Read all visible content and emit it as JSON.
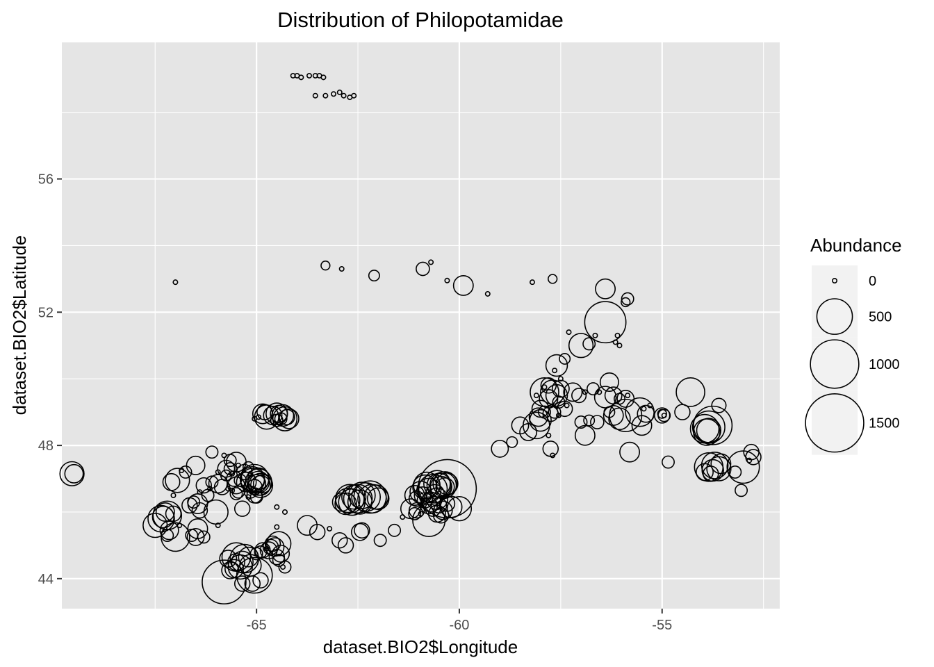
{
  "chart_data": {
    "type": "scatter",
    "title": "Distribution of Philopotamidae",
    "xlabel": "dataset.BIO2$Longitude",
    "ylabel": "dataset.BIO2$Latitude",
    "xlim": [
      -69.8,
      -52.1
    ],
    "ylim": [
      43.1,
      60.1
    ],
    "x_ticks": [
      -65,
      -60,
      -55
    ],
    "y_ticks": [
      44,
      48,
      52,
      56
    ],
    "x_tick_labels": [
      "-65",
      "-60",
      "-55"
    ],
    "y_tick_labels": [
      "44",
      "48",
      "52",
      "56"
    ],
    "grid": true,
    "panel_color": "#e5e5e5",
    "grid_color": "#ffffff",
    "marker_color": "#000000",
    "legend": {
      "title": "Abundance",
      "position": "right",
      "entries": [
        {
          "label": "0",
          "value": 0
        },
        {
          "label": "500",
          "value": 500
        },
        {
          "label": "1000",
          "value": 1000
        },
        {
          "label": "1500",
          "value": 1500
        }
      ]
    },
    "points": [
      [
        -64.1,
        59.1,
        0
      ],
      [
        -64.0,
        59.1,
        0
      ],
      [
        -63.9,
        59.05,
        0
      ],
      [
        -63.7,
        59.1,
        0
      ],
      [
        -63.55,
        59.1,
        0
      ],
      [
        -63.45,
        59.1,
        0
      ],
      [
        -63.35,
        59.05,
        0
      ],
      [
        -63.55,
        58.5,
        0
      ],
      [
        -63.3,
        58.5,
        0
      ],
      [
        -63.1,
        58.55,
        0
      ],
      [
        -62.95,
        58.6,
        0
      ],
      [
        -62.85,
        58.5,
        0
      ],
      [
        -62.7,
        58.45,
        0
      ],
      [
        -62.6,
        58.5,
        0
      ],
      [
        -67.0,
        52.9,
        0
      ],
      [
        -63.3,
        53.4,
        10
      ],
      [
        -62.9,
        53.3,
        0
      ],
      [
        -62.1,
        53.1,
        20
      ],
      [
        -60.9,
        53.3,
        40
      ],
      [
        -60.7,
        53.5,
        0
      ],
      [
        -60.3,
        52.95,
        0
      ],
      [
        -59.9,
        52.8,
        120
      ],
      [
        -59.3,
        52.55,
        0
      ],
      [
        -58.2,
        52.9,
        0
      ],
      [
        -57.7,
        53.0,
        10
      ],
      [
        -56.4,
        52.7,
        120
      ],
      [
        -55.85,
        52.4,
        30
      ],
      [
        -55.9,
        52.3,
        10
      ],
      [
        -57.3,
        51.4,
        0
      ],
      [
        -57.0,
        51.0,
        200
      ],
      [
        -56.8,
        51.05,
        30
      ],
      [
        -56.65,
        51.3,
        0
      ],
      [
        -56.4,
        51.7,
        700
      ],
      [
        -56.15,
        51.1,
        0
      ],
      [
        -56.05,
        51.0,
        0
      ],
      [
        -56.1,
        51.3,
        0
      ],
      [
        -57.6,
        50.4,
        150
      ],
      [
        -57.4,
        50.6,
        20
      ],
      [
        -57.65,
        50.25,
        0
      ],
      [
        -57.5,
        50.0,
        0
      ],
      [
        -57.8,
        49.8,
        60
      ],
      [
        -57.9,
        49.75,
        0
      ],
      [
        -58.1,
        49.5,
        0
      ],
      [
        -57.9,
        49.6,
        300
      ],
      [
        -57.7,
        49.6,
        200
      ],
      [
        -57.6,
        49.5,
        150
      ],
      [
        -57.5,
        49.7,
        80
      ],
      [
        -57.8,
        49.4,
        100
      ],
      [
        -57.55,
        49.3,
        30
      ],
      [
        -57.4,
        49.1,
        60
      ],
      [
        -57.35,
        49.2,
        0
      ],
      [
        -58.0,
        49.1,
        80
      ],
      [
        -58.05,
        48.85,
        100
      ],
      [
        -58.0,
        48.75,
        150
      ],
      [
        -57.9,
        49.0,
        30
      ],
      [
        -57.75,
        48.95,
        60
      ],
      [
        -57.65,
        49.0,
        30
      ],
      [
        -57.55,
        48.9,
        0
      ],
      [
        -58.1,
        48.6,
        250
      ],
      [
        -58.3,
        48.4,
        80
      ],
      [
        -58.5,
        48.6,
        80
      ],
      [
        -58.7,
        48.1,
        20
      ],
      [
        -59.0,
        47.9,
        80
      ],
      [
        -57.8,
        48.3,
        0
      ],
      [
        -57.75,
        47.9,
        60
      ],
      [
        -57.7,
        47.7,
        0
      ],
      [
        -57.2,
        49.6,
        100
      ],
      [
        -57.05,
        49.5,
        50
      ],
      [
        -56.9,
        49.6,
        0
      ],
      [
        -56.3,
        49.9,
        100
      ],
      [
        -56.4,
        49.45,
        150
      ],
      [
        -56.2,
        49.5,
        80
      ],
      [
        -56.05,
        49.4,
        20
      ],
      [
        -55.9,
        49.4,
        80
      ],
      [
        -55.85,
        49.5,
        0
      ],
      [
        -56.7,
        49.7,
        30
      ],
      [
        -56.55,
        49.6,
        0
      ],
      [
        -57.0,
        48.7,
        30
      ],
      [
        -56.8,
        48.75,
        20
      ],
      [
        -56.6,
        48.7,
        40
      ],
      [
        -56.9,
        48.3,
        120
      ],
      [
        -56.3,
        49.0,
        20
      ],
      [
        -56.2,
        48.9,
        120
      ],
      [
        -56.05,
        48.8,
        150
      ],
      [
        -55.9,
        48.9,
        400
      ],
      [
        -55.55,
        49.0,
        300
      ],
      [
        -55.3,
        49.2,
        0
      ],
      [
        -55.45,
        49.1,
        0
      ],
      [
        -55.5,
        48.6,
        120
      ],
      [
        -55.4,
        48.95,
        80
      ],
      [
        -55.8,
        47.8,
        120
      ],
      [
        -55.0,
        48.9,
        60
      ],
      [
        -54.95,
        48.9,
        30
      ],
      [
        -54.95,
        48.9,
        0
      ],
      [
        -55.0,
        48.95,
        10
      ],
      [
        -54.5,
        49.0,
        60
      ],
      [
        -54.3,
        49.6,
        300
      ],
      [
        -53.6,
        49.2,
        50
      ],
      [
        -54.85,
        47.5,
        30
      ],
      [
        -53.95,
        48.5,
        300
      ],
      [
        -53.85,
        48.55,
        400
      ],
      [
        -53.75,
        48.6,
        600
      ],
      [
        -53.85,
        48.45,
        200
      ],
      [
        -53.9,
        48.4,
        250
      ],
      [
        -53.85,
        47.35,
        300
      ],
      [
        -53.75,
        47.25,
        150
      ],
      [
        -53.7,
        47.4,
        250
      ],
      [
        -53.6,
        47.3,
        200
      ],
      [
        -53.55,
        47.45,
        120
      ],
      [
        -53.8,
        47.15,
        60
      ],
      [
        -53.95,
        47.2,
        80
      ],
      [
        -53.2,
        47.2,
        30
      ],
      [
        -53.0,
        47.35,
        400
      ],
      [
        -52.8,
        47.8,
        60
      ],
      [
        -52.75,
        47.65,
        60
      ],
      [
        -52.85,
        47.55,
        0
      ],
      [
        -53.05,
        46.65,
        30
      ],
      [
        -69.55,
        47.15,
        200
      ],
      [
        -69.5,
        47.15,
        100
      ],
      [
        -67.1,
        46.9,
        80
      ],
      [
        -66.95,
        46.95,
        200
      ],
      [
        -66.85,
        47.25,
        0
      ],
      [
        -66.75,
        47.2,
        30
      ],
      [
        -66.5,
        47.4,
        100
      ],
      [
        -67.05,
        46.5,
        0
      ],
      [
        -66.3,
        46.8,
        60
      ],
      [
        -66.1,
        46.9,
        30
      ],
      [
        -66.15,
        46.7,
        0
      ],
      [
        -65.95,
        46.85,
        100
      ],
      [
        -66.4,
        46.6,
        0
      ],
      [
        -65.75,
        47.1,
        20
      ],
      [
        -65.65,
        47.3,
        30
      ],
      [
        -65.55,
        47.0,
        60
      ],
      [
        -65.45,
        47.4,
        0
      ],
      [
        -65.5,
        46.8,
        80
      ],
      [
        -65.4,
        46.95,
        30
      ],
      [
        -65.3,
        47.2,
        60
      ],
      [
        -65.2,
        47.35,
        20
      ],
      [
        -65.15,
        47.15,
        0
      ],
      [
        -65.25,
        46.9,
        120
      ],
      [
        -65.1,
        47.0,
        200
      ],
      [
        -64.95,
        46.9,
        150
      ],
      [
        -64.9,
        46.8,
        200
      ],
      [
        -64.85,
        46.85,
        100
      ],
      [
        -65.05,
        46.75,
        60
      ],
      [
        -65.15,
        46.6,
        30
      ],
      [
        -65.05,
        46.5,
        60
      ],
      [
        -65.2,
        46.45,
        0
      ],
      [
        -65.5,
        46.55,
        30
      ],
      [
        -65.6,
        46.65,
        0
      ],
      [
        -65.8,
        47.7,
        0
      ],
      [
        -65.65,
        47.55,
        30
      ],
      [
        -66.1,
        47.8,
        30
      ],
      [
        -65.75,
        47.3,
        80
      ],
      [
        -65.6,
        47.15,
        0
      ],
      [
        -65.45,
        46.6,
        30
      ],
      [
        -65.85,
        46.75,
        60
      ],
      [
        -65.7,
        46.7,
        0
      ],
      [
        -65.5,
        47.5,
        120
      ],
      [
        -65.95,
        47.2,
        0
      ],
      [
        -67.25,
        46.0,
        100
      ],
      [
        -67.3,
        45.85,
        150
      ],
      [
        -67.5,
        45.6,
        200
      ],
      [
        -67.35,
        45.8,
        250
      ],
      [
        -67.2,
        45.9,
        300
      ],
      [
        -67.05,
        45.95,
        60
      ],
      [
        -67.15,
        45.45,
        100
      ],
      [
        -67.0,
        45.25,
        300
      ],
      [
        -67.2,
        45.3,
        30
      ],
      [
        -66.9,
        45.6,
        0
      ],
      [
        -66.65,
        46.2,
        60
      ],
      [
        -66.55,
        46.3,
        30
      ],
      [
        -66.45,
        46.25,
        120
      ],
      [
        -66.4,
        46.05,
        60
      ],
      [
        -66.2,
        46.5,
        30
      ],
      [
        -66.45,
        45.5,
        120
      ],
      [
        -66.5,
        45.25,
        80
      ],
      [
        -66.6,
        45.3,
        30
      ],
      [
        -66.3,
        45.25,
        30
      ],
      [
        -66.0,
        46.0,
        200
      ],
      [
        -65.95,
        45.6,
        0
      ],
      [
        -64.9,
        46.8,
        120
      ],
      [
        -64.95,
        46.9,
        250
      ],
      [
        -65.05,
        47.0,
        300
      ],
      [
        -65.1,
        46.95,
        200
      ],
      [
        -64.95,
        47.0,
        150
      ],
      [
        -65.0,
        46.85,
        100
      ],
      [
        -65.35,
        46.1,
        60
      ],
      [
        -65.0,
        46.45,
        30
      ],
      [
        -65.05,
        48.8,
        0
      ],
      [
        -64.95,
        48.85,
        0
      ],
      [
        -64.85,
        48.95,
        120
      ],
      [
        -64.8,
        49.0,
        60
      ],
      [
        -64.75,
        48.85,
        200
      ],
      [
        -64.6,
        48.9,
        100
      ],
      [
        -64.5,
        48.95,
        150
      ],
      [
        -64.45,
        48.95,
        80
      ],
      [
        -64.35,
        48.9,
        150
      ],
      [
        -64.3,
        48.8,
        200
      ],
      [
        -64.25,
        48.85,
        60
      ],
      [
        -64.2,
        48.8,
        120
      ],
      [
        -64.5,
        48.75,
        30
      ],
      [
        -64.4,
        48.8,
        30
      ],
      [
        -64.6,
        45.05,
        60
      ],
      [
        -64.45,
        45.05,
        200
      ],
      [
        -64.5,
        45.55,
        0
      ],
      [
        -64.3,
        46.0,
        0
      ],
      [
        -64.5,
        46.15,
        0
      ],
      [
        -63.75,
        45.6,
        120
      ],
      [
        -63.5,
        45.4,
        60
      ],
      [
        -63.2,
        45.5,
        0
      ],
      [
        -62.95,
        45.15,
        60
      ],
      [
        -62.8,
        45.0,
        60
      ],
      [
        -62.45,
        45.4,
        80
      ],
      [
        -62.4,
        45.45,
        60
      ],
      [
        -61.95,
        45.15,
        30
      ],
      [
        -61.6,
        45.45,
        30
      ],
      [
        -61.4,
        45.85,
        0
      ],
      [
        -61.2,
        46.1,
        120
      ],
      [
        -61.1,
        45.95,
        30
      ],
      [
        -61.05,
        46.05,
        60
      ],
      [
        -60.95,
        45.95,
        0
      ],
      [
        -65.5,
        44.5,
        80
      ],
      [
        -65.35,
        44.5,
        150
      ],
      [
        -65.55,
        44.3,
        100
      ],
      [
        -65.4,
        44.35,
        200
      ],
      [
        -65.3,
        44.6,
        300
      ],
      [
        -65.2,
        44.65,
        120
      ],
      [
        -65.15,
        44.4,
        150
      ],
      [
        -65.0,
        44.75,
        30
      ],
      [
        -64.9,
        44.8,
        30
      ],
      [
        -64.85,
        44.85,
        60
      ],
      [
        -64.75,
        44.9,
        0
      ],
      [
        -64.7,
        44.85,
        80
      ],
      [
        -64.65,
        44.95,
        60
      ],
      [
        -64.55,
        44.95,
        100
      ],
      [
        -64.5,
        44.65,
        60
      ],
      [
        -64.45,
        44.55,
        30
      ],
      [
        -64.4,
        44.75,
        80
      ],
      [
        -64.35,
        44.35,
        0
      ],
      [
        -64.3,
        44.35,
        30
      ],
      [
        -65.05,
        44.1,
        500
      ],
      [
        -64.9,
        43.95,
        60
      ],
      [
        -65.1,
        43.85,
        60
      ],
      [
        -65.35,
        43.85,
        60
      ],
      [
        -65.8,
        43.9,
        800
      ],
      [
        -65.5,
        44.65,
        300
      ],
      [
        -65.7,
        44.6,
        80
      ],
      [
        -65.65,
        44.25,
        80
      ],
      [
        -62.75,
        46.35,
        200
      ],
      [
        -62.7,
        46.4,
        300
      ],
      [
        -62.65,
        46.3,
        250
      ],
      [
        -62.6,
        46.45,
        200
      ],
      [
        -62.5,
        46.4,
        300
      ],
      [
        -62.4,
        46.5,
        250
      ],
      [
        -62.3,
        46.45,
        300
      ],
      [
        -62.2,
        46.45,
        400
      ],
      [
        -62.15,
        46.4,
        300
      ],
      [
        -62.05,
        46.45,
        200
      ],
      [
        -62.0,
        46.4,
        150
      ],
      [
        -62.45,
        46.3,
        200
      ],
      [
        -62.8,
        46.25,
        150
      ],
      [
        -62.9,
        46.3,
        100
      ],
      [
        -61.05,
        46.4,
        60
      ],
      [
        -61.1,
        46.5,
        120
      ],
      [
        -60.95,
        46.6,
        150
      ],
      [
        -60.85,
        46.75,
        200
      ],
      [
        -60.8,
        46.8,
        250
      ],
      [
        -60.75,
        46.65,
        200
      ],
      [
        -60.65,
        46.7,
        300
      ],
      [
        -60.55,
        46.85,
        250
      ],
      [
        -60.5,
        46.8,
        200
      ],
      [
        -60.45,
        46.75,
        150
      ],
      [
        -60.4,
        46.8,
        250
      ],
      [
        -60.35,
        46.85,
        200
      ],
      [
        -60.3,
        46.7,
        1500
      ],
      [
        -60.3,
        46.85,
        150
      ],
      [
        -60.35,
        46.75,
        100
      ],
      [
        -60.6,
        46.55,
        100
      ],
      [
        -60.55,
        46.4,
        150
      ],
      [
        -60.7,
        46.3,
        120
      ],
      [
        -60.75,
        46.2,
        80
      ],
      [
        -60.65,
        46.1,
        60
      ],
      [
        -60.55,
        45.95,
        80
      ],
      [
        -60.45,
        45.9,
        60
      ],
      [
        -60.4,
        46.05,
        100
      ],
      [
        -60.5,
        46.2,
        60
      ],
      [
        -60.3,
        46.25,
        60
      ],
      [
        -60.2,
        46.15,
        150
      ],
      [
        -60.0,
        46.1,
        200
      ],
      [
        -60.75,
        45.75,
        400
      ],
      [
        -60.9,
        46.5,
        80
      ],
      [
        -60.85,
        46.35,
        60
      ]
    ]
  }
}
